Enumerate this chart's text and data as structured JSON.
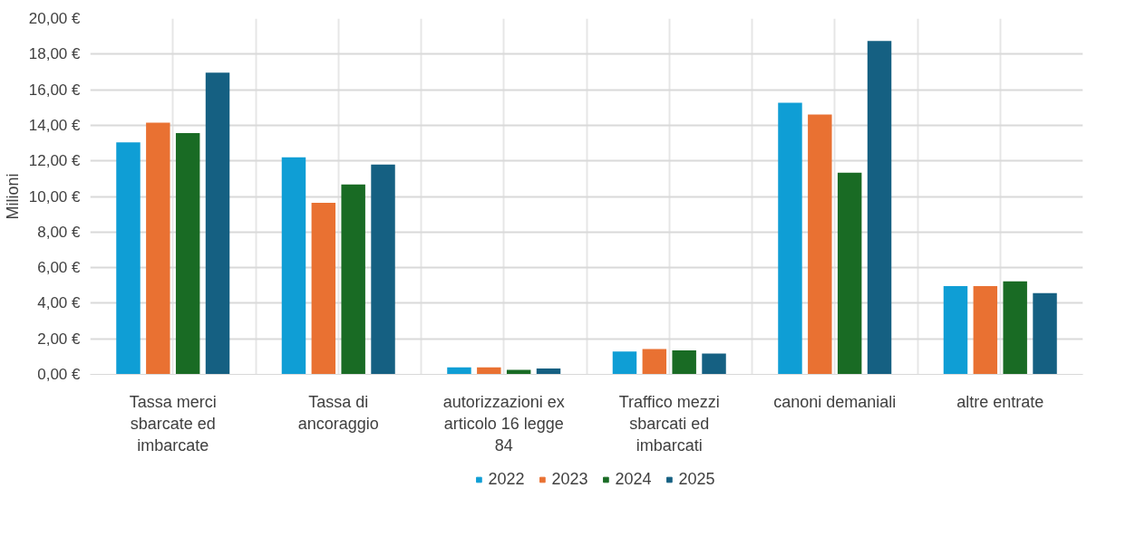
{
  "chart_data": {
    "type": "bar",
    "ylabel": "Milioni",
    "categories": [
      "Tassa merci sbarcate ed imbarcate",
      "Tassa di ancoraggio",
      "autorizzazioni ex articolo 16 legge 84",
      "Traffico mezzi sbarcati ed imbarcati",
      "canoni demaniali",
      "altre entrate"
    ],
    "series": [
      {
        "name": "2022",
        "color": "#0f9ed5",
        "values": [
          13.04,
          12.2,
          0.4,
          1.29,
          15.27,
          4.96
        ]
      },
      {
        "name": "2023",
        "color": "#e97132",
        "values": [
          14.15,
          9.64,
          0.4,
          1.42,
          14.6,
          4.96
        ]
      },
      {
        "name": "2024",
        "color": "#196b24",
        "values": [
          13.56,
          10.68,
          0.26,
          1.35,
          11.33,
          5.23
        ]
      },
      {
        "name": "2025",
        "color": "#156082",
        "values": [
          16.96,
          11.8,
          0.33,
          1.17,
          18.74,
          4.57
        ]
      }
    ],
    "ylim": [
      0,
      20
    ],
    "yticks": [
      {
        "value": 0,
        "label": "0,00 €"
      },
      {
        "value": 2,
        "label": "2,00 €"
      },
      {
        "value": 4,
        "label": "4,00 €"
      },
      {
        "value": 6,
        "label": "6,00 €"
      },
      {
        "value": 8,
        "label": "8,00 €"
      },
      {
        "value": 10,
        "label": "10,00 €"
      },
      {
        "value": 12,
        "label": "12,00 €"
      },
      {
        "value": 14,
        "label": "14,00 €"
      },
      {
        "value": 16,
        "label": "16,00 €"
      },
      {
        "value": 18,
        "label": "18,00 €"
      },
      {
        "value": 20,
        "label": "20,00 €"
      }
    ],
    "grid": true,
    "legend": "bottom"
  }
}
